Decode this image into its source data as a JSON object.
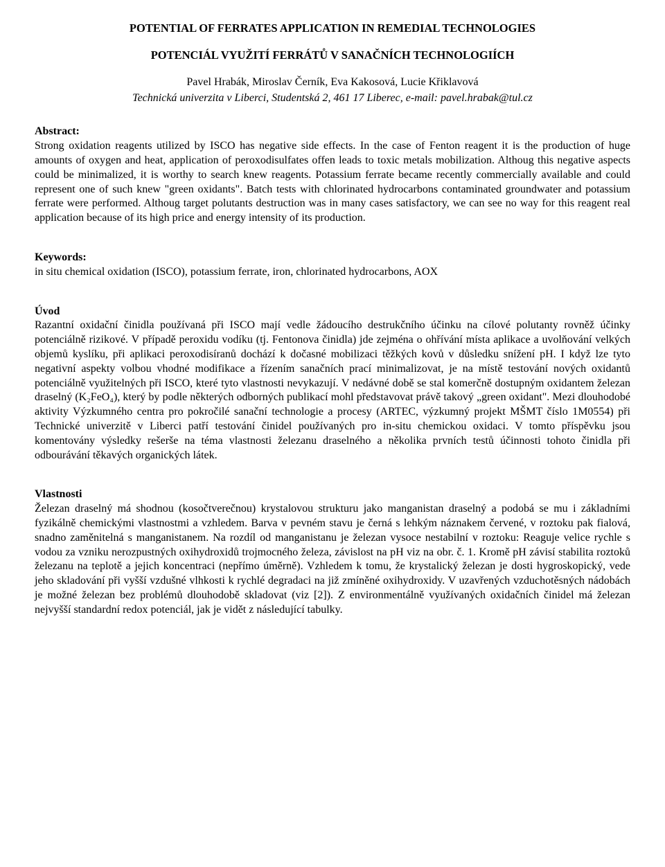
{
  "title": "POTENTIAL OF FERRATES APPLICATION IN REMEDIAL TECHNOLOGIES",
  "subtitle": "POTENCIÁL VYUŽITÍ FERRÁTŮ V SANAČNÍCH TECHNOLOGIÍCH",
  "authors": "Pavel Hrabák, Miroslav Černík, Eva Kakosová, Lucie Křiklavová",
  "affiliation": "Technická univerzita v Liberci, Studentská 2, 461 17 Liberec, e-mail: pavel.hrabak@tul.cz",
  "abstract_label": "Abstract:",
  "abstract_text": "Strong oxidation reagents utilized by ISCO has negative side effects. In the case of Fenton reagent it is the production of huge amounts of oxygen and heat, application of peroxodisulfates offen leads to toxic metals mobilization. Althoug this negative aspects could be minimalized, it is worthy to search knew reagents. Potassium ferrate became recently commercially available and could represent one of such knew \"green oxidants\". Batch tests with chlorinated hydrocarbons contaminated groundwater and potassium ferrate were performed. Althoug target polutants destruction was in many cases satisfactory, we can see no way for this reagent real application because of its high price and energy intensity of its production.",
  "keywords_label": "Keywords:",
  "keywords_text": "in situ chemical oxidation (ISCO), potassium ferrate, iron, chlorinated hydrocarbons, AOX",
  "uvod_label": "Úvod",
  "uvod_text": "Razantní oxidační činidla používaná při ISCO mají vedle žádoucího destrukčního účinku na cílové polutanty rovněž účinky potenciálně rizikové. V případě peroxidu vodíku (tj. Fentonova činidla) jde zejména o ohřívání místa aplikace a uvolňování velkých objemů kyslíku, při aplikaci peroxodisíranů dochází k dočasné mobilizaci těžkých kovů v důsledku snížení pH. I když lze tyto negativní aspekty volbou vhodné modifikace a řízením sanačních prací minimalizovat, je na místě testování nových oxidantů potenciálně využitelných při ISCO, které tyto vlastnosti nevykazují. V nedávné době se stal komerčně dostupným oxidantem železan draselný (K₂FeO₄), který by podle některých odborných publikací mohl představovat právě takový „green oxidant\". Mezi dlouhodobé aktivity Výzkumného centra pro pokročilé sanační technologie a procesy (ARTEC, výzkumný projekt MŠMT číslo 1M0554) při Technické univerzitě v Liberci patří testování činidel používaných pro in-situ chemickou oxidaci. V tomto příspěvku jsou komentovány výsledky rešerše na téma vlastnosti železanu draselného a několika prvních testů účinnosti tohoto činidla při odbourávání těkavých organických látek.",
  "vlastnosti_label": "Vlastnosti",
  "vlastnosti_text": "Železan draselný má shodnou (kosočtverečnou) krystalovou strukturu jako manganistan draselný a podobá se mu i základními fyzikálně chemickými vlastnostmi a vzhledem. Barva v pevném stavu je černá s lehkým náznakem červené, v roztoku pak fialová, snadno zaměnitelná s manganistanem. Na rozdíl od manganistanu je železan vysoce nestabilní v roztoku: Reaguje velice rychle s vodou za vzniku nerozpustných oxihydroxidů trojmocného železa, závislost na pH viz na obr. č. 1. Kromě pH závisí stabilita roztoků železanu na teplotě a jejich koncentraci (nepřímo úměrně). Vzhledem k tomu, že krystalický železan je dosti hygroskopický, vede jeho skladování při vyšší vzdušné vlhkosti k rychlé degradaci na již zmíněné oxihydroxidy. V uzavřených vzduchotěsných nádobách je možné železan bez problémů dlouhodobě skladovat (viz [2]). Z environmentálně využívaných oxidačních činidel má železan nejvyšší standardní redox potenciál, jak je vidět z následující tabulky."
}
